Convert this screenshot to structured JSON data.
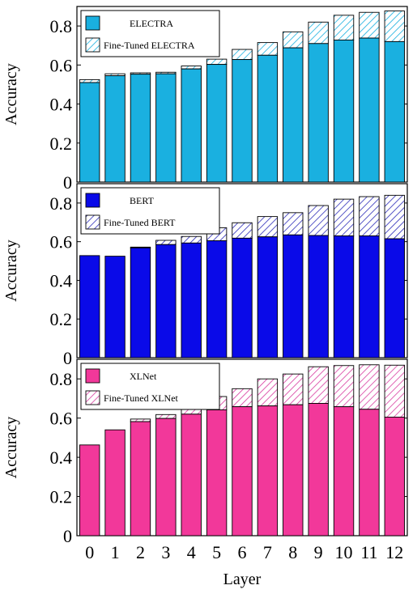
{
  "chart_data": [
    {
      "type": "bar",
      "categories": [
        "0",
        "1",
        "2",
        "3",
        "4",
        "5",
        "6",
        "7",
        "8",
        "9",
        "10",
        "11",
        "12"
      ],
      "series": [
        {
          "name": "ELECTRA",
          "values": [
            0.51,
            0.545,
            0.553,
            0.555,
            0.58,
            0.603,
            0.628,
            0.65,
            0.688,
            0.71,
            0.728,
            0.738,
            0.72
          ]
        },
        {
          "name": "Fine-Tuned ELECTRA",
          "values": [
            0.525,
            0.555,
            0.56,
            0.563,
            0.595,
            0.63,
            0.68,
            0.715,
            0.77,
            0.82,
            0.855,
            0.87,
            0.877
          ]
        }
      ],
      "ylabel": "Accuracy",
      "xlabel": "",
      "ylim": [
        0,
        0.9
      ],
      "yticks": [
        "0",
        "0.2",
        "0.4",
        "0.6",
        "0.8"
      ],
      "colors": {
        "base": "#1ab0e0",
        "fine_tuned_hatch": "#1ab0e0"
      },
      "legend_position": "top-left"
    },
    {
      "type": "bar",
      "categories": [
        "0",
        "1",
        "2",
        "3",
        "4",
        "5",
        "6",
        "7",
        "8",
        "9",
        "10",
        "11",
        "12"
      ],
      "series": [
        {
          "name": "BERT",
          "values": [
            0.528,
            0.525,
            0.568,
            0.585,
            0.593,
            0.605,
            0.618,
            0.625,
            0.635,
            0.632,
            0.63,
            0.63,
            0.615
          ]
        },
        {
          "name": "Fine-Tuned BERT",
          "values": [
            0.528,
            0.525,
            0.572,
            0.607,
            0.627,
            0.672,
            0.698,
            0.73,
            0.75,
            0.787,
            0.82,
            0.833,
            0.84
          ]
        }
      ],
      "ylabel": "Accuracy",
      "xlabel": "",
      "ylim": [
        0,
        0.9
      ],
      "yticks": [
        "0",
        "0.2",
        "0.4",
        "0.6",
        "0.8"
      ],
      "colors": {
        "base": "#0a0ae8",
        "fine_tuned_hatch": "#2a2ab8"
      },
      "legend_position": "top-left"
    },
    {
      "type": "bar",
      "categories": [
        "0",
        "1",
        "2",
        "3",
        "4",
        "5",
        "6",
        "7",
        "8",
        "9",
        "10",
        "11",
        "12"
      ],
      "series": [
        {
          "name": "XLNet",
          "values": [
            0.463,
            0.54,
            0.582,
            0.598,
            0.62,
            0.642,
            0.658,
            0.662,
            0.668,
            0.675,
            0.658,
            0.645,
            0.605
          ]
        },
        {
          "name": "Fine-Tuned XLNet",
          "values": [
            0.463,
            0.54,
            0.595,
            0.618,
            0.662,
            0.71,
            0.75,
            0.8,
            0.825,
            0.862,
            0.868,
            0.872,
            0.87
          ]
        }
      ],
      "ylabel": "Accuracy",
      "xlabel": "Layer",
      "ylim": [
        0,
        0.9
      ],
      "yticks": [
        "0",
        "0.2",
        "0.4",
        "0.6",
        "0.8"
      ],
      "colors": {
        "base": "#f2389a",
        "fine_tuned_hatch": "#d83aa0"
      },
      "legend_position": "top-left"
    }
  ]
}
